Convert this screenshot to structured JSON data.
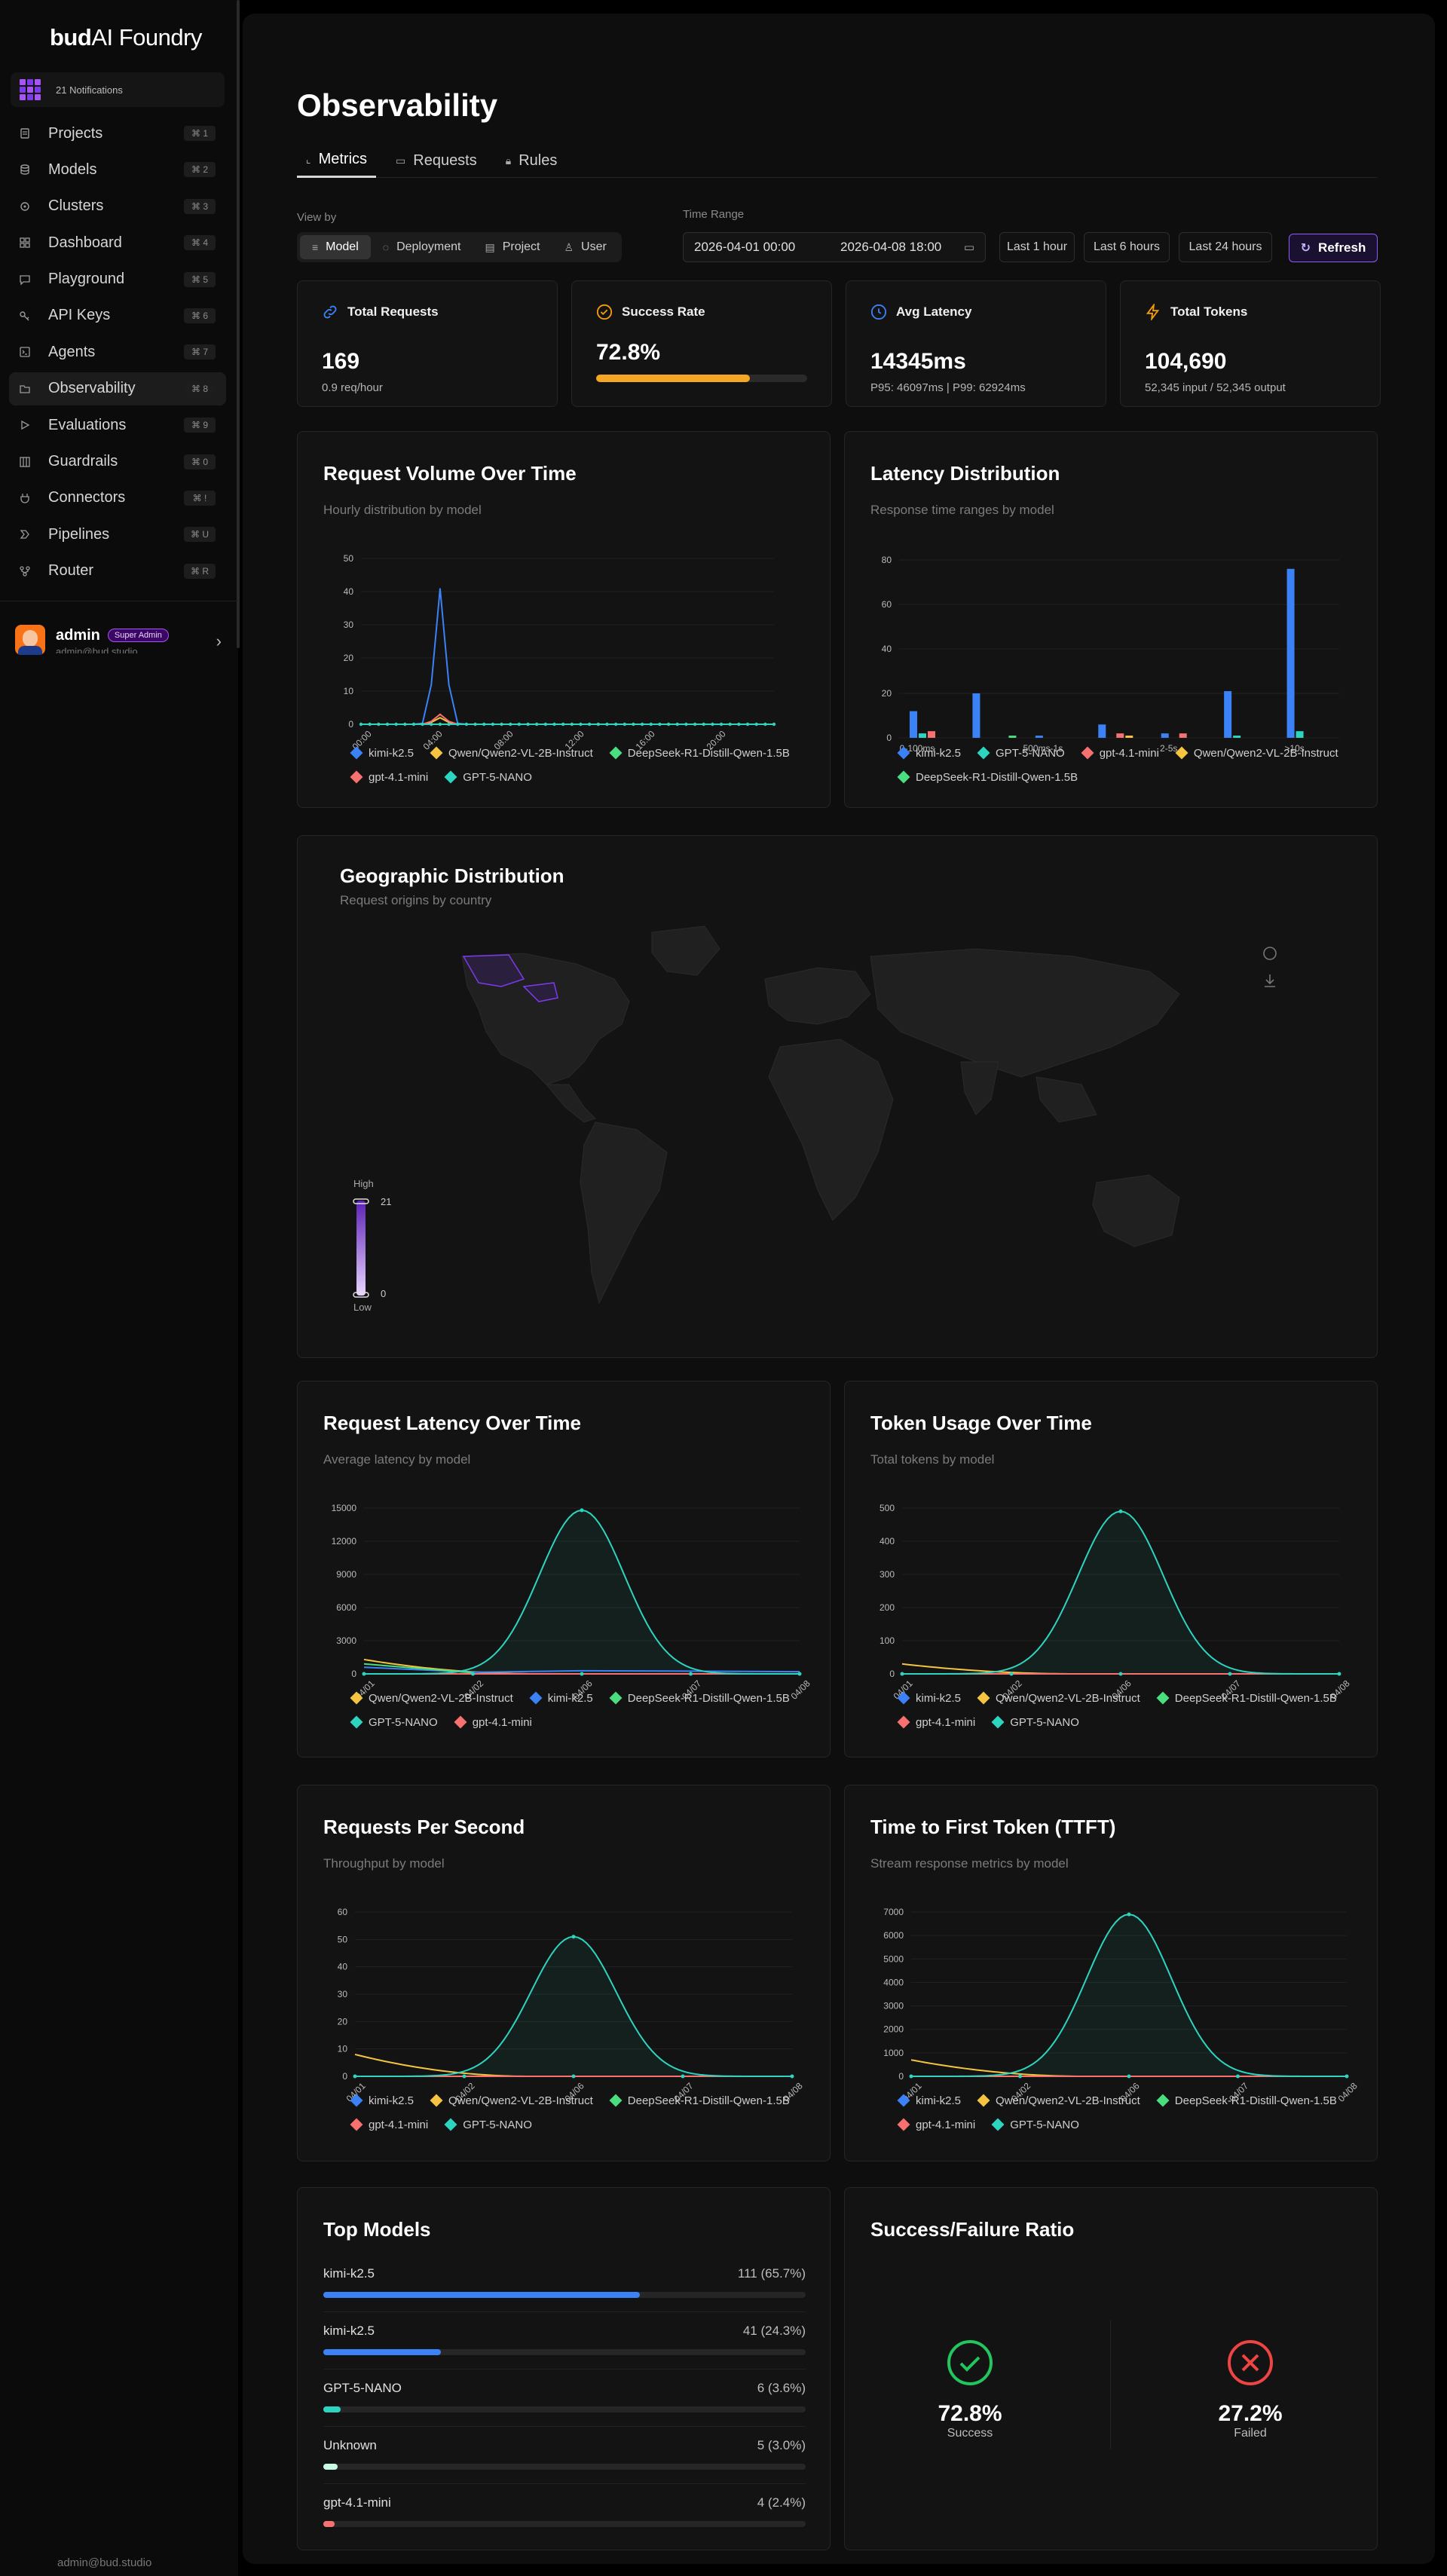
{
  "app": {
    "logo_bold": "bud",
    "logo_rest": "AI Foundry"
  },
  "notifications": {
    "label": "21 Notifications"
  },
  "nav": [
    {
      "label": "Projects",
      "shortcut": "⌘ 1",
      "icon": "document-icon"
    },
    {
      "label": "Models",
      "shortcut": "⌘ 2",
      "icon": "database-icon"
    },
    {
      "label": "Clusters",
      "shortcut": "⌘ 3",
      "icon": "cluster-icon"
    },
    {
      "label": "Dashboard",
      "shortcut": "⌘ 4",
      "icon": "grid-icon"
    },
    {
      "label": "Playground",
      "shortcut": "⌘ 5",
      "icon": "chat-icon"
    },
    {
      "label": "API Keys",
      "shortcut": "⌘ 6",
      "icon": "key-icon"
    },
    {
      "label": "Agents",
      "shortcut": "⌘ 7",
      "icon": "terminal-icon"
    },
    {
      "label": "Observability",
      "shortcut": "⌘ 8",
      "icon": "folder-icon",
      "active": true
    },
    {
      "label": "Evaluations",
      "shortcut": "⌘ 9",
      "icon": "play-icon"
    },
    {
      "label": "Guardrails",
      "shortcut": "⌘ 0",
      "icon": "columns-icon"
    },
    {
      "label": "Connectors",
      "shortcut": "⌘ !",
      "icon": "plug-icon"
    },
    {
      "label": "Pipelines",
      "shortcut": "⌘ U",
      "icon": "pipeline-icon"
    },
    {
      "label": "Router",
      "shortcut": "⌘ R",
      "icon": "router-icon"
    }
  ],
  "user": {
    "name": "admin",
    "role": "Super Admin",
    "email": "admin@bud.studio"
  },
  "page": {
    "title": "Observability"
  },
  "tabs": [
    {
      "label": "Metrics",
      "icon": "chart-icon",
      "active": true
    },
    {
      "label": "Requests",
      "icon": "folder-icon"
    },
    {
      "label": "Rules",
      "icon": "bell-icon"
    }
  ],
  "view_by": {
    "label": "View by",
    "options": [
      {
        "label": "Model",
        "icon": "database-icon",
        "active": true
      },
      {
        "label": "Deployment",
        "icon": "cluster-icon"
      },
      {
        "label": "Project",
        "icon": "document-icon"
      },
      {
        "label": "User",
        "icon": "user-icon"
      }
    ]
  },
  "time_range": {
    "label": "Time Range",
    "start": "2026-04-01 00:00",
    "end": "2026-04-08 18:00",
    "quick": [
      "Last 1 hour",
      "Last 6 hours",
      "Last 24 hours"
    ],
    "refresh_label": "Refresh"
  },
  "stats": [
    {
      "title": "Total Requests",
      "value": "169",
      "sub": "0.9 req/hour",
      "icon": "link-icon",
      "color": "#3b82f6"
    },
    {
      "title": "Success Rate",
      "value": "72.8%",
      "progress": 0.728,
      "icon": "check-circle-icon",
      "color": "#f59e0b"
    },
    {
      "title": "Avg Latency",
      "value": "14345ms",
      "sub": "P95: 46097ms | P99: 62924ms",
      "icon": "clock-icon",
      "color": "#3b82f6"
    },
    {
      "title": "Total Tokens",
      "value": "104,690",
      "sub": "52,345 input / 52,345 output",
      "icon": "bolt-icon",
      "color": "#f59e0b"
    }
  ],
  "colors": {
    "kimi": "#3b82f6",
    "qwen": "#f5c542",
    "deepseek": "#4ade80",
    "gpt41": "#f87171",
    "gpt5": "#2dd4bf"
  },
  "charts": {
    "volume": {
      "title": "Request Volume Over Time",
      "subtitle": "Hourly distribution by model",
      "chart_data": {
        "type": "line",
        "x": [
          "00:00",
          "04:00",
          "08:00",
          "12:00",
          "16:00",
          "20:00"
        ],
        "yticks": [
          0,
          10,
          20,
          30,
          40,
          50
        ],
        "ylim": [
          0,
          50
        ],
        "series": [
          {
            "name": "kimi-k2.5",
            "color": "#3b82f6",
            "peak": 41
          },
          {
            "name": "Qwen/Qwen2-VL-2B-Instruct",
            "color": "#f5c542",
            "peak": 2
          },
          {
            "name": "DeepSeek-R1-Distill-Qwen-1.5B",
            "color": "#4ade80",
            "peak": 0
          },
          {
            "name": "gpt-4.1-mini",
            "color": "#f87171",
            "peak": 3
          },
          {
            "name": "GPT-5-NANO",
            "color": "#2dd4bf",
            "peak": 0
          }
        ]
      }
    },
    "latency_dist": {
      "title": "Latency Distribution",
      "subtitle": "Response time ranges by model",
      "chart_data": {
        "type": "bar",
        "categories": [
          "0-100ms",
          "",
          "500ms-1s",
          "",
          "2-5s",
          "",
          ">10s"
        ],
        "yticks": [
          0,
          20,
          40,
          60,
          80
        ],
        "ylim": [
          0,
          80
        ],
        "series": [
          {
            "name": "kimi-k2.5",
            "color": "#3b82f6",
            "values": [
              12,
              20,
              1,
              6,
              2,
              21,
              76
            ]
          },
          {
            "name": "GPT-5-NANO",
            "color": "#2dd4bf",
            "values": [
              2,
              0,
              0,
              0,
              0,
              1,
              3
            ]
          },
          {
            "name": "gpt-4.1-mini",
            "color": "#f87171",
            "values": [
              3,
              0,
              0,
              2,
              2,
              0,
              0
            ]
          },
          {
            "name": "Qwen/Qwen2-VL-2B-Instruct",
            "color": "#f5c542",
            "values": [
              0,
              0,
              0,
              1,
              0,
              0,
              0
            ]
          },
          {
            "name": "DeepSeek-R1-Distill-Qwen-1.5B",
            "color": "#4ade80",
            "values": [
              0,
              1,
              0,
              0,
              0,
              0,
              0
            ]
          }
        ]
      }
    },
    "geo": {
      "title": "Geographic Distribution",
      "subtitle": "Request origins by country",
      "legend_high": "High",
      "legend_low": "Low",
      "max": "21",
      "min": "0"
    },
    "req_latency": {
      "title": "Request Latency Over Time",
      "subtitle": "Average latency by model",
      "chart_data": {
        "type": "line",
        "x": [
          "04/01",
          "04/02",
          "04/06",
          "04/07",
          "04/08"
        ],
        "yticks": [
          0,
          3000,
          6000,
          9000,
          12000,
          15000
        ],
        "ylim": [
          0,
          15000
        ],
        "peak_series": {
          "name": "GPT-5-NANO",
          "peak": 14800
        },
        "series": [
          {
            "name": "Qwen/Qwen2-VL-2B-Instruct",
            "color": "#f5c542"
          },
          {
            "name": "kimi-k2.5",
            "color": "#3b82f6"
          },
          {
            "name": "DeepSeek-R1-Distill-Qwen-1.5B",
            "color": "#4ade80"
          },
          {
            "name": "GPT-5-NANO",
            "color": "#2dd4bf"
          },
          {
            "name": "gpt-4.1-mini",
            "color": "#f87171"
          }
        ]
      }
    },
    "token_usage": {
      "title": "Token Usage Over Time",
      "subtitle": "Total tokens by model",
      "chart_data": {
        "type": "line",
        "x": [
          "04/01",
          "04/02",
          "04/06",
          "04/07",
          "04/08"
        ],
        "yticks": [
          0,
          100,
          200,
          300,
          400,
          500
        ],
        "ylim": [
          0,
          500
        ],
        "peak_series": {
          "name": "GPT-5-NANO",
          "peak": 490
        },
        "series": [
          {
            "name": "kimi-k2.5",
            "color": "#3b82f6"
          },
          {
            "name": "Qwen/Qwen2-VL-2B-Instruct",
            "color": "#f5c542"
          },
          {
            "name": "DeepSeek-R1-Distill-Qwen-1.5B",
            "color": "#4ade80"
          },
          {
            "name": "gpt-4.1-mini",
            "color": "#f87171"
          },
          {
            "name": "GPT-5-NANO",
            "color": "#2dd4bf"
          }
        ]
      }
    },
    "rps": {
      "title": "Requests Per Second",
      "subtitle": "Throughput by model",
      "chart_data": {
        "type": "line",
        "x": [
          "04/01",
          "04/02",
          "04/06",
          "04/07",
          "04/08"
        ],
        "yticks": [
          0,
          10,
          20,
          30,
          40,
          50,
          60
        ],
        "ylim": [
          0,
          60
        ],
        "peak_series": {
          "name": "GPT-5-NANO",
          "peak": 51
        },
        "series": [
          {
            "name": "kimi-k2.5",
            "color": "#3b82f6"
          },
          {
            "name": "Qwen/Qwen2-VL-2B-Instruct",
            "color": "#f5c542"
          },
          {
            "name": "DeepSeek-R1-Distill-Qwen-1.5B",
            "color": "#4ade80"
          },
          {
            "name": "gpt-4.1-mini",
            "color": "#f87171"
          },
          {
            "name": "GPT-5-NANO",
            "color": "#2dd4bf"
          }
        ]
      }
    },
    "ttft": {
      "title": "Time to First Token (TTFT)",
      "subtitle": "Stream response metrics by model",
      "chart_data": {
        "type": "line",
        "x": [
          "04/01",
          "04/02",
          "04/06",
          "04/07",
          "04/08"
        ],
        "yticks": [
          0,
          1000,
          2000,
          3000,
          4000,
          5000,
          6000,
          7000
        ],
        "ylim": [
          0,
          7000
        ],
        "peak_series": {
          "name": "GPT-5-NANO",
          "peak": 6900
        },
        "series": [
          {
            "name": "kimi-k2.5",
            "color": "#3b82f6"
          },
          {
            "name": "Qwen/Qwen2-VL-2B-Instruct",
            "color": "#f5c542"
          },
          {
            "name": "DeepSeek-R1-Distill-Qwen-1.5B",
            "color": "#4ade80"
          },
          {
            "name": "gpt-4.1-mini",
            "color": "#f87171"
          },
          {
            "name": "GPT-5-NANO",
            "color": "#2dd4bf"
          }
        ]
      }
    }
  },
  "top_models": {
    "title": "Top Models",
    "items": [
      {
        "name": "kimi-k2.5",
        "count": "111 (65.7%)",
        "share": 0.657,
        "color": "#3b82f6"
      },
      {
        "name": "kimi-k2.5",
        "count": "41 (24.3%)",
        "share": 0.243,
        "color": "#3b82f6"
      },
      {
        "name": "GPT-5-NANO",
        "count": "6 (3.6%)",
        "share": 0.036,
        "color": "#2dd4bf"
      },
      {
        "name": "Unknown",
        "count": "5 (3.0%)",
        "share": 0.03,
        "color": "#c7f9e5"
      },
      {
        "name": "gpt-4.1-mini",
        "count": "4 (2.4%)",
        "share": 0.024,
        "color": "#f87171"
      }
    ]
  },
  "ratio": {
    "title": "Success/Failure Ratio",
    "success_pct": "72.8%",
    "success_label": "Success",
    "fail_pct": "27.2%",
    "fail_label": "Failed"
  }
}
